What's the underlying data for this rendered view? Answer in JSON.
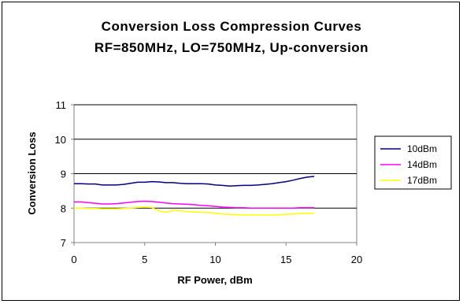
{
  "chart_data": {
    "type": "line",
    "title_lines": [
      "Conversion Loss Compression Curves",
      "RF=850MHz, LO=750MHz, Up-conversion"
    ],
    "xlabel": "RF Power, dBm",
    "ylabel": "Conversion Loss",
    "xlim": [
      0,
      20
    ],
    "ylim": [
      7,
      11
    ],
    "x_ticks": [
      "0",
      "5",
      "10",
      "15",
      "20"
    ],
    "y_ticks": [
      "7",
      "8",
      "9",
      "10",
      "11"
    ],
    "grid": "horizontal major gridlines",
    "legend_position": "right",
    "series": [
      {
        "name": "10dBm",
        "color": "#000080",
        "x": [
          0,
          0.5,
          1,
          1.5,
          2,
          2.5,
          3,
          3.5,
          4,
          4.5,
          5,
          5.5,
          6,
          6.5,
          7,
          7.5,
          8,
          8.5,
          9,
          9.5,
          10,
          10.5,
          11,
          11.5,
          12,
          12.5,
          13,
          13.5,
          14,
          14.5,
          15,
          15.5,
          16,
          16.5,
          17
        ],
        "values": [
          8.71,
          8.71,
          8.7,
          8.7,
          8.67,
          8.67,
          8.67,
          8.69,
          8.72,
          8.75,
          8.75,
          8.77,
          8.76,
          8.74,
          8.74,
          8.72,
          8.71,
          8.71,
          8.71,
          8.7,
          8.67,
          8.66,
          8.64,
          8.65,
          8.66,
          8.66,
          8.67,
          8.69,
          8.71,
          8.74,
          8.77,
          8.81,
          8.86,
          8.9,
          8.92
        ]
      },
      {
        "name": "14dBm",
        "color": "#ff00ff",
        "x": [
          0,
          0.5,
          1,
          1.5,
          2,
          2.5,
          3,
          3.5,
          4,
          4.5,
          5,
          5.5,
          6,
          6.5,
          7,
          7.5,
          8,
          8.5,
          9,
          9.5,
          10,
          10.5,
          11,
          11.5,
          12,
          12.5,
          13,
          13.5,
          14,
          14.5,
          15,
          15.5,
          16,
          16.5,
          17
        ],
        "values": [
          8.18,
          8.18,
          8.16,
          8.14,
          8.12,
          8.12,
          8.13,
          8.15,
          8.17,
          8.19,
          8.2,
          8.19,
          8.17,
          8.15,
          8.13,
          8.12,
          8.11,
          8.1,
          8.08,
          8.07,
          8.05,
          8.03,
          8.02,
          8.01,
          8.01,
          8.0,
          8.0,
          8.0,
          8.0,
          8.0,
          8.0,
          8.0,
          8.01,
          8.01,
          8.01
        ]
      },
      {
        "name": "17dBm",
        "color": "#ffff00",
        "x": [
          0,
          0.5,
          1,
          1.5,
          2,
          2.5,
          3,
          3.5,
          4,
          4.5,
          5,
          5.5,
          6,
          6.5,
          7,
          7.5,
          8,
          8.5,
          9,
          9.5,
          10,
          10.5,
          11,
          11.5,
          12,
          12.5,
          13,
          13.5,
          14,
          14.5,
          15,
          15.5,
          16,
          16.5,
          17
        ],
        "values": [
          8.0,
          8.0,
          7.99,
          7.99,
          7.98,
          7.98,
          7.98,
          7.99,
          8.0,
          8.02,
          8.03,
          8.02,
          7.92,
          7.88,
          7.93,
          7.92,
          7.9,
          7.89,
          7.88,
          7.87,
          7.85,
          7.83,
          7.82,
          7.81,
          7.8,
          7.8,
          7.8,
          7.8,
          7.8,
          7.81,
          7.82,
          7.83,
          7.84,
          7.85,
          7.85
        ]
      }
    ]
  }
}
